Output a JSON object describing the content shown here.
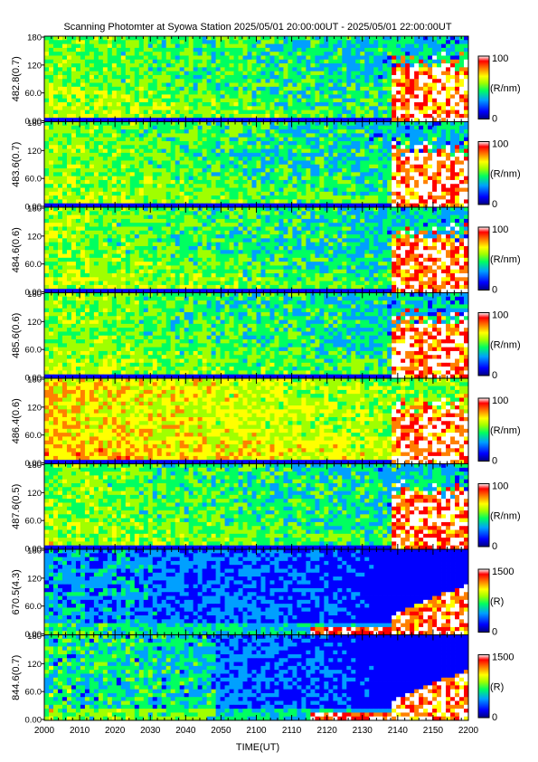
{
  "chart_data": {
    "type": "heatmap",
    "title": "Scanning Photomter at Syowa Station 2025/05/01 20:00:00UT - 2025/05/01 22:00:00UT",
    "xlabel": "TIME(UT)",
    "x_ticks": [
      "2000",
      "2010",
      "2020",
      "2030",
      "2040",
      "2050",
      "2100",
      "2110",
      "2120",
      "2130",
      "2140",
      "2150",
      "2200"
    ],
    "y_ticks": [
      "0.00",
      "60.0",
      "120",
      "180"
    ],
    "ylim": [
      0,
      180
    ],
    "colormap": [
      "#000080",
      "#0000ff",
      "#00a0ff",
      "#00ff60",
      "#a0ff00",
      "#ffff00",
      "#ff8000",
      "#ff0000",
      "#ffffff"
    ],
    "panels": [
      {
        "ylabel": "482.8(0.7)",
        "colorbar": {
          "max_label": "100",
          "unit": "(R/nm)",
          "min_label": "0"
        }
      },
      {
        "ylabel": "483.6(0.7)",
        "colorbar": {
          "max_label": "100",
          "unit": "(R/nm)",
          "min_label": "0"
        }
      },
      {
        "ylabel": "484.6(0.6)",
        "colorbar": {
          "max_label": "100",
          "unit": "(R/nm)",
          "min_label": "0"
        }
      },
      {
        "ylabel": "485.6(0.6)",
        "colorbar": {
          "max_label": "100",
          "unit": "(R/nm)",
          "min_label": "0"
        }
      },
      {
        "ylabel": "486.4(0.6)",
        "colorbar": {
          "max_label": "100",
          "unit": "(R/nm)",
          "min_label": "0"
        }
      },
      {
        "ylabel": "487.6(0.5)",
        "colorbar": {
          "max_label": "100",
          "unit": "(R/nm)",
          "min_label": "0"
        }
      },
      {
        "ylabel": "670.5(4.3)",
        "colorbar": {
          "max_label": "1500",
          "unit": "(R)",
          "min_label": "0"
        }
      },
      {
        "ylabel": "844.6(0.7)",
        "colorbar": {
          "max_label": "1500",
          "unit": "(R)",
          "min_label": "0"
        }
      }
    ]
  }
}
